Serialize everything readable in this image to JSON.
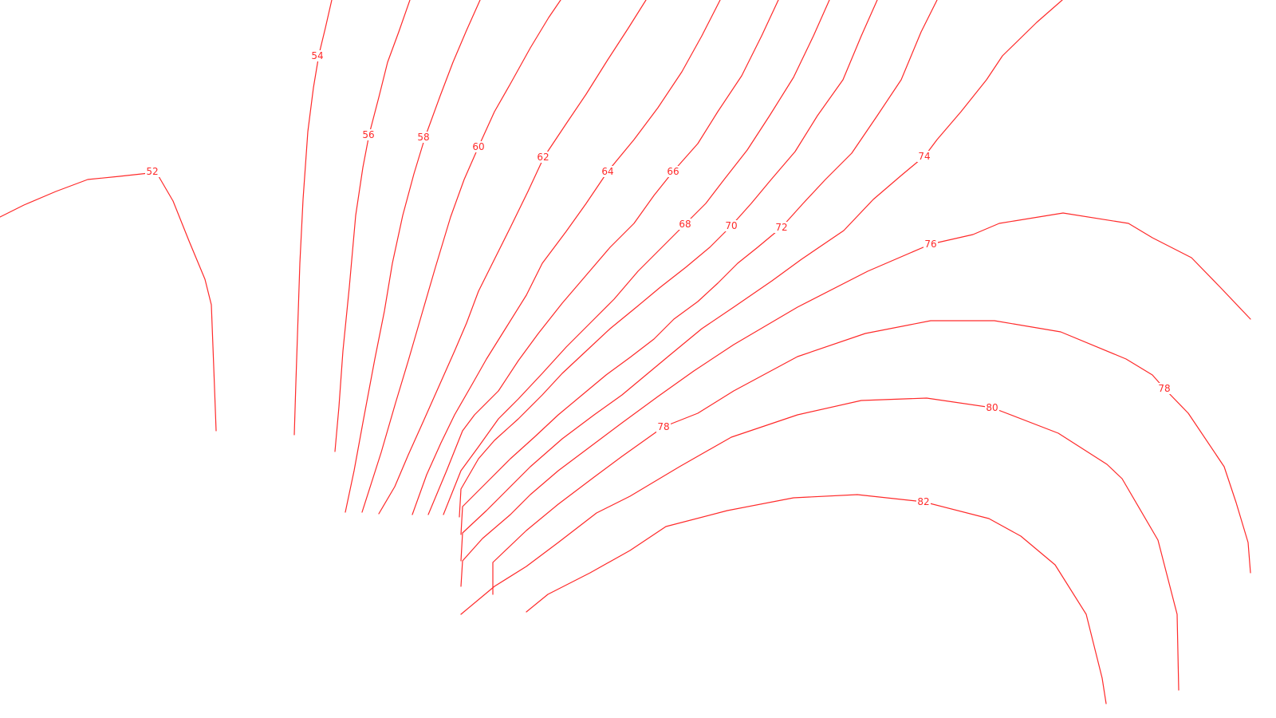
{
  "chart_data": {
    "type": "contour",
    "line_color": "#ff2a2a",
    "contours": [
      {
        "level": 52,
        "label": "52"
      },
      {
        "level": 54,
        "label": "54"
      },
      {
        "level": 56,
        "label": "56"
      },
      {
        "level": 58,
        "label": "58"
      },
      {
        "level": 60,
        "label": "60"
      },
      {
        "level": 62,
        "label": "62"
      },
      {
        "level": 64,
        "label": "64"
      },
      {
        "level": 66,
        "label": "66"
      },
      {
        "level": 68,
        "label": "68"
      },
      {
        "level": 70,
        "label": "70"
      },
      {
        "level": 72,
        "label": "72"
      },
      {
        "level": 74,
        "label": "74"
      },
      {
        "level": 76,
        "label": "76"
      },
      {
        "level": 78,
        "label": "78"
      },
      {
        "level": 80,
        "label": "80"
      },
      {
        "level": 82,
        "label": "82"
      }
    ]
  }
}
